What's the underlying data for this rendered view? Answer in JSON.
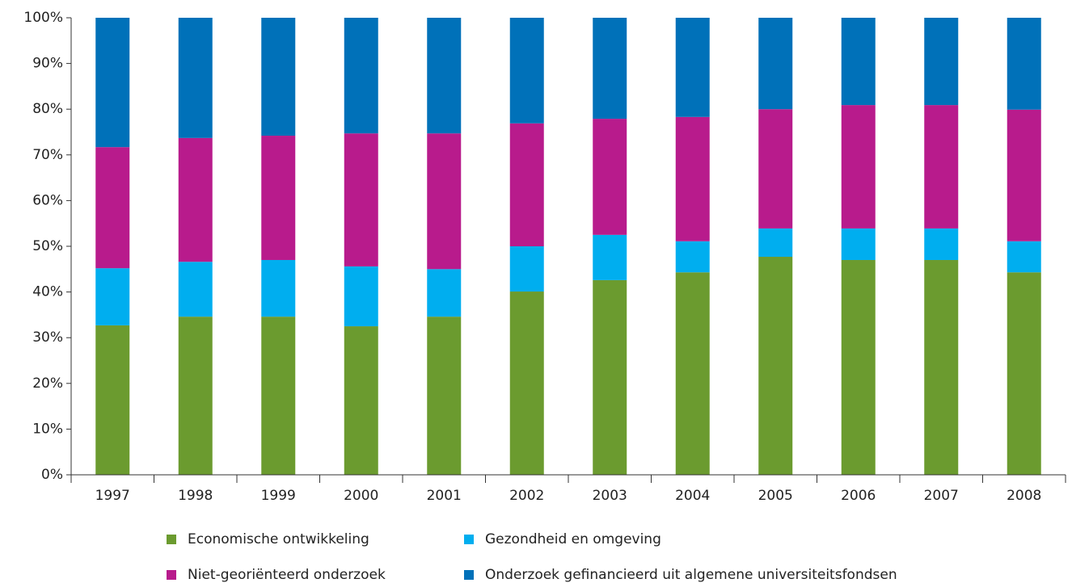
{
  "chart_data": {
    "type": "stacked_bar",
    "categories": [
      "1997",
      "1998",
      "1999",
      "2000",
      "2001",
      "2002",
      "2003",
      "2004",
      "2005",
      "2006",
      "2007",
      "2008"
    ],
    "series": [
      {
        "name": "Economische ontwikkeling",
        "color": "#6b9b2f",
        "values": [
          32.7,
          34.6,
          34.6,
          32.5,
          34.6,
          40.1,
          42.6,
          44.3,
          47.7,
          47,
          47,
          44.3
        ]
      },
      {
        "name": "Gezondheid en omgeving",
        "color": "#00aeef",
        "values": [
          12.5,
          12,
          12.4,
          13.1,
          10.4,
          9.9,
          9.9,
          6.8,
          6.2,
          6.9,
          6.9,
          6.8
        ]
      },
      {
        "name": "Niet-georiënteerd onderzoek",
        "color": "#b81b8c",
        "values": [
          26.5,
          27.1,
          27.2,
          29.1,
          29.7,
          26.9,
          25.4,
          27.2,
          26.1,
          27,
          27,
          28.8
        ]
      },
      {
        "name": "Onderzoek gefinancieerd uit algemene universiteitsfondsen",
        "color": "#0071b9",
        "values": [
          28.3,
          26.3,
          25.8,
          25.3,
          25.3,
          23.1,
          22.1,
          21.7,
          20,
          19.1,
          19.1,
          20.1
        ]
      }
    ],
    "ylim": [
      0,
      100
    ],
    "yticks": [
      {
        "value": 0,
        "label": "0%"
      },
      {
        "value": 10,
        "label": "10%"
      },
      {
        "value": 20,
        "label": "20%"
      },
      {
        "value": 30,
        "label": "30%"
      },
      {
        "value": 40,
        "label": "40%"
      },
      {
        "value": 50,
        "label": "50%"
      },
      {
        "value": 60,
        "label": "60%"
      },
      {
        "value": 70,
        "label": "70%"
      },
      {
        "value": 80,
        "label": "80%"
      },
      {
        "value": 90,
        "label": "90%"
      },
      {
        "value": 100,
        "label": "100%"
      }
    ],
    "legend": "bottom"
  }
}
